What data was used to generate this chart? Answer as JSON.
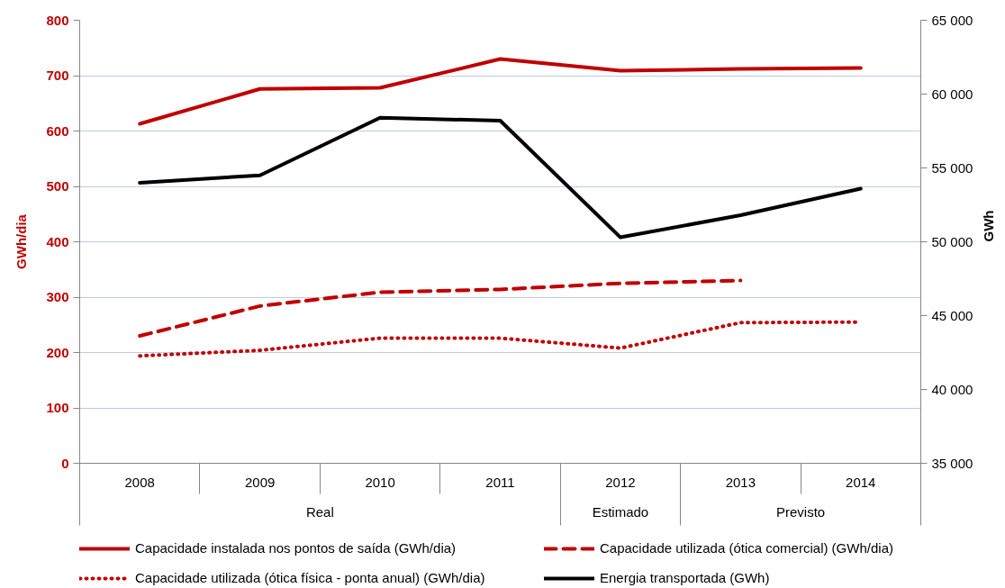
{
  "chart_data": {
    "type": "line",
    "ylabel": "GWh/dia",
    "y2label": "GWh",
    "categories": [
      "2008",
      "2009",
      "2010",
      "2011",
      "2012",
      "2013",
      "2014"
    ],
    "series": [
      {
        "name": "Capacidade instalada nos pontos de saída (GWh/dia)",
        "color": "#c00000",
        "line_style": "solid",
        "values": [
          613,
          676,
          678,
          730,
          709,
          712,
          714
        ]
      },
      {
        "name": "Capacidade utilizada (ótica comercial) (GWh/dia)",
        "color": "#c00000",
        "line_style": "dashed",
        "values": [
          230,
          284,
          309,
          314,
          325,
          330,
          null
        ]
      },
      {
        "name": "Capacidade utilizada (ótica física - ponta anual) (GWh/dia)",
        "color": "#c00000",
        "line_style": "dotted",
        "values": [
          194,
          204,
          226,
          226,
          208,
          254,
          255
        ]
      },
      {
        "name": "Energia transportada (GWh)",
        "color": "#000000",
        "line_style": "solid",
        "axis": "y2",
        "values": [
          54000,
          54500,
          58400,
          58200,
          50300,
          51800,
          53600
        ]
      }
    ],
    "ylim": [
      0,
      800
    ],
    "yticks": [
      0,
      100,
      200,
      300,
      400,
      500,
      600,
      700,
      800
    ],
    "y2lim": [
      35000,
      65000
    ],
    "y2ticks": [
      {
        "value": 35000,
        "label": "35 000"
      },
      {
        "value": 40000,
        "label": "40 000"
      },
      {
        "value": 45000,
        "label": "45 000"
      },
      {
        "value": 50000,
        "label": "50 000"
      },
      {
        "value": 55000,
        "label": "55 000"
      },
      {
        "value": 60000,
        "label": "60 000"
      },
      {
        "value": 65000,
        "label": "65 000"
      }
    ],
    "annotations": [
      "Real",
      "Estimado",
      "Previsto"
    ],
    "grid": "y",
    "legend": "bottom"
  }
}
